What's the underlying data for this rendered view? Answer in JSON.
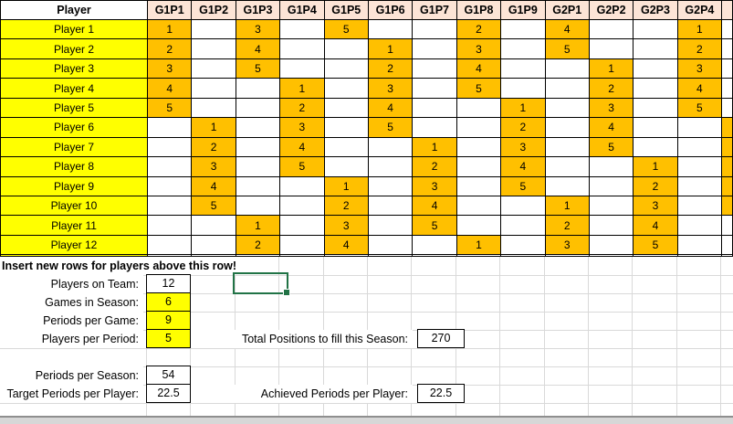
{
  "table": {
    "corner_header": "Player",
    "columns": [
      "G1P1",
      "G1P2",
      "G1P3",
      "G1P4",
      "G1P5",
      "G1P6",
      "G1P7",
      "G1P8",
      "G1P9",
      "G2P1",
      "G2P2",
      "G2P3",
      "G2P4"
    ],
    "rows": [
      {
        "player": "Player 1",
        "cells": {
          "G1P1": "1",
          "G1P3": "3",
          "G1P5": "5",
          "G1P8": "2",
          "G2P1": "4",
          "G2P4": "1"
        },
        "overflow_highlight": false
      },
      {
        "player": "Player 2",
        "cells": {
          "G1P1": "2",
          "G1P3": "4",
          "G1P6": "1",
          "G1P8": "3",
          "G2P1": "5",
          "G2P4": "2"
        },
        "overflow_highlight": false
      },
      {
        "player": "Player 3",
        "cells": {
          "G1P1": "3",
          "G1P3": "5",
          "G1P6": "2",
          "G1P8": "4",
          "G2P2": "1",
          "G2P4": "3"
        },
        "overflow_highlight": false
      },
      {
        "player": "Player 4",
        "cells": {
          "G1P1": "4",
          "G1P4": "1",
          "G1P6": "3",
          "G1P8": "5",
          "G2P2": "2",
          "G2P4": "4"
        },
        "overflow_highlight": false
      },
      {
        "player": "Player 5",
        "cells": {
          "G1P1": "5",
          "G1P4": "2",
          "G1P6": "4",
          "G1P9": "1",
          "G2P2": "3",
          "G2P4": "5"
        },
        "overflow_highlight": false
      },
      {
        "player": "Player 6",
        "cells": {
          "G1P2": "1",
          "G1P4": "3",
          "G1P6": "5",
          "G1P9": "2",
          "G2P2": "4"
        },
        "overflow_highlight": true
      },
      {
        "player": "Player 7",
        "cells": {
          "G1P2": "2",
          "G1P4": "4",
          "G1P7": "1",
          "G1P9": "3",
          "G2P2": "5"
        },
        "overflow_highlight": true
      },
      {
        "player": "Player 8",
        "cells": {
          "G1P2": "3",
          "G1P4": "5",
          "G1P7": "2",
          "G1P9": "4",
          "G2P3": "1"
        },
        "overflow_highlight": true
      },
      {
        "player": "Player 9",
        "cells": {
          "G1P2": "4",
          "G1P5": "1",
          "G1P7": "3",
          "G1P9": "5",
          "G2P3": "2"
        },
        "overflow_highlight": true
      },
      {
        "player": "Player 10",
        "cells": {
          "G1P2": "5",
          "G1P5": "2",
          "G1P7": "4",
          "G2P1": "1",
          "G2P3": "3"
        },
        "overflow_highlight": true
      },
      {
        "player": "Player 11",
        "cells": {
          "G1P3": "1",
          "G1P5": "3",
          "G1P7": "5",
          "G2P1": "2",
          "G2P3": "4"
        },
        "overflow_highlight": false
      },
      {
        "player": "Player 12",
        "cells": {
          "G1P3": "2",
          "G1P5": "4",
          "G1P8": "1",
          "G2P1": "3",
          "G2P3": "5"
        },
        "overflow_highlight": false
      }
    ],
    "empty_row_after_players": true
  },
  "notes": {
    "insert_row_note": "Insert new rows for players above this row!"
  },
  "stats": [
    {
      "label": "Players on Team:",
      "value": "12",
      "highlight": false
    },
    {
      "label": "Games in Season:",
      "value": "6",
      "highlight": true
    },
    {
      "label": "Periods per Game:",
      "value": "9",
      "highlight": true
    },
    {
      "label": "Players per Period:",
      "value": "5",
      "highlight": true
    },
    {
      "label": "Periods per Season:",
      "value": "54",
      "highlight": false
    },
    {
      "label": "Target Periods per Player:",
      "value": "22.5",
      "highlight": false
    }
  ],
  "summary": [
    {
      "label": "Total Positions to fill this Season:",
      "value": "270"
    },
    {
      "label": "Achieved Periods per Player:",
      "value": "22.5"
    }
  ],
  "colors": {
    "highlight_orange": "#FFC000",
    "highlight_yellow": "#FFFF00",
    "column_header_fill": "#FCE4D6",
    "selection_green": "#217346",
    "cell_border": "#000000",
    "gridline_gray": "#D9D9D9"
  }
}
